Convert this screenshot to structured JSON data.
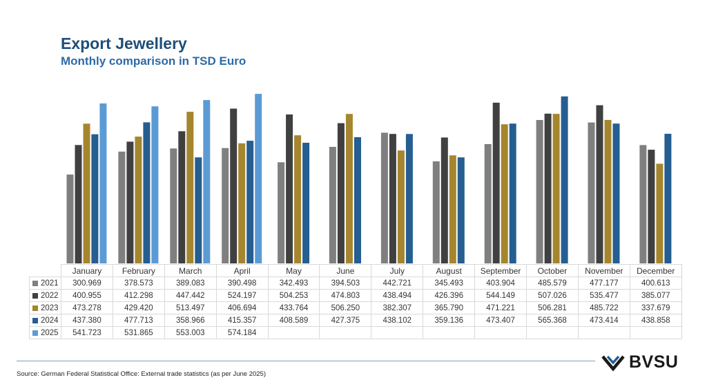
{
  "title": "Export Jewellery",
  "subtitle": "Monthly comparison in TSD Euro",
  "source": "Source: German Federal Statistical Office: External trade statistics (as per June 2025)",
  "logo": {
    "text": "BVSU",
    "color": "#1a1a1a"
  },
  "chart_data": {
    "type": "bar",
    "title": "Export Jewellery",
    "subtitle": "Monthly comparison in TSD Euro",
    "categories": [
      "January",
      "February",
      "March",
      "April",
      "May",
      "June",
      "July",
      "August",
      "September",
      "October",
      "November",
      "December"
    ],
    "ylim": [
      0,
      600
    ],
    "grid": false,
    "legend": "table",
    "series": [
      {
        "name": "2021",
        "color": "#7f7f7f",
        "values": [
          300.969,
          378.573,
          389.083,
          390.498,
          342.493,
          394.503,
          442.721,
          345.493,
          403.904,
          485.579,
          477.177,
          400.613
        ]
      },
      {
        "name": "2022",
        "color": "#404040",
        "values": [
          400.955,
          412.298,
          447.442,
          524.197,
          504.253,
          474.803,
          438.494,
          426.396,
          544.149,
          507.026,
          535.477,
          385.077
        ]
      },
      {
        "name": "2023",
        "color": "#a5862e",
        "values": [
          473.278,
          429.42,
          513.497,
          406.694,
          433.764,
          506.25,
          382.307,
          365.79,
          471.221,
          506.281,
          485.722,
          337.679
        ]
      },
      {
        "name": "2024",
        "color": "#255e91",
        "values": [
          437.38,
          477.713,
          358.966,
          415.357,
          408.589,
          427.375,
          438.102,
          359.136,
          473.407,
          565.368,
          473.414,
          438.858
        ]
      },
      {
        "name": "2025",
        "color": "#5b9bd5",
        "values": [
          541.723,
          531.865,
          553.003,
          574.184,
          null,
          null,
          null,
          null,
          null,
          null,
          null,
          null
        ]
      }
    ]
  }
}
